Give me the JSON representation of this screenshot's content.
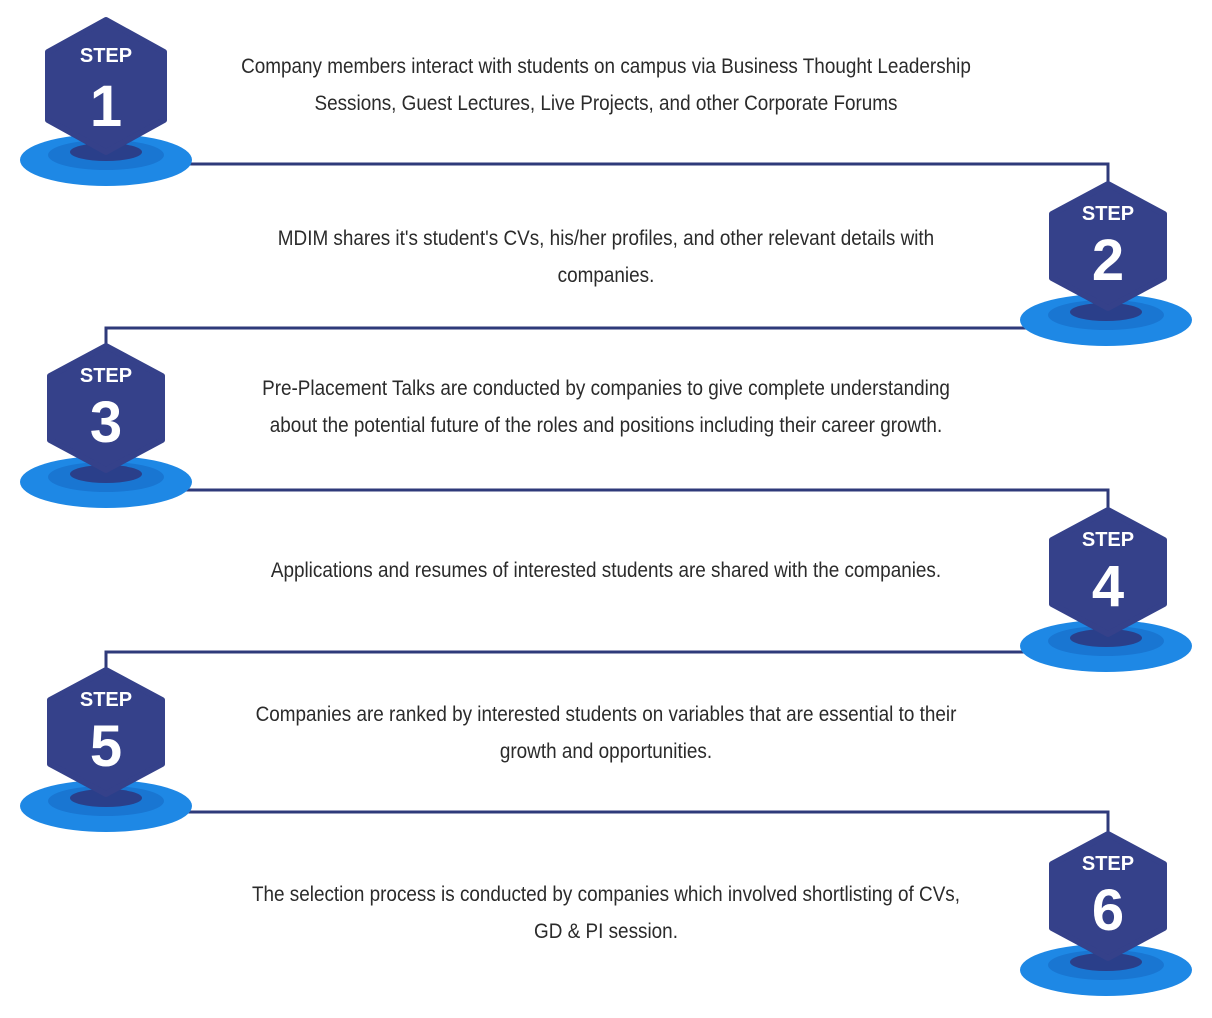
{
  "colors": {
    "hexagon": "#35418a",
    "line": "#2f3a7a",
    "pool_outer": "#1e88e5",
    "pool_mid": "#1976d2",
    "pool_inner": "#2a3f8a",
    "text": "#2b2b2b"
  },
  "steps": [
    {
      "badge_word": "STEP",
      "badge_number": "1",
      "text_line1": "Company members interact with students on campus via Business Thought Leadership",
      "text_line2": "Sessions, Guest Lectures, Live Projects, and other Corporate Forums"
    },
    {
      "badge_word": "STEP",
      "badge_number": "2",
      "text_line1": "MDIM shares it's student's CVs, his/her profiles, and other relevant details with",
      "text_line2": "companies."
    },
    {
      "badge_word": "STEP",
      "badge_number": "3",
      "text_line1": "Pre-Placement Talks are conducted by companies to give complete understanding",
      "text_line2": "about the potential future of the roles and positions including their career growth."
    },
    {
      "badge_word": "STEP",
      "badge_number": "4",
      "text_line1": "Applications and resumes of interested students are shared with the companies.",
      "text_line2": ""
    },
    {
      "badge_word": "STEP",
      "badge_number": "5",
      "text_line1": "Companies are ranked by interested students on variables that are essential to their",
      "text_line2": "growth and opportunities."
    },
    {
      "badge_word": "STEP",
      "badge_number": "6",
      "text_line1": "The selection process is conducted by companies which involved shortlisting of CVs,",
      "text_line2": "GD & PI session."
    }
  ]
}
